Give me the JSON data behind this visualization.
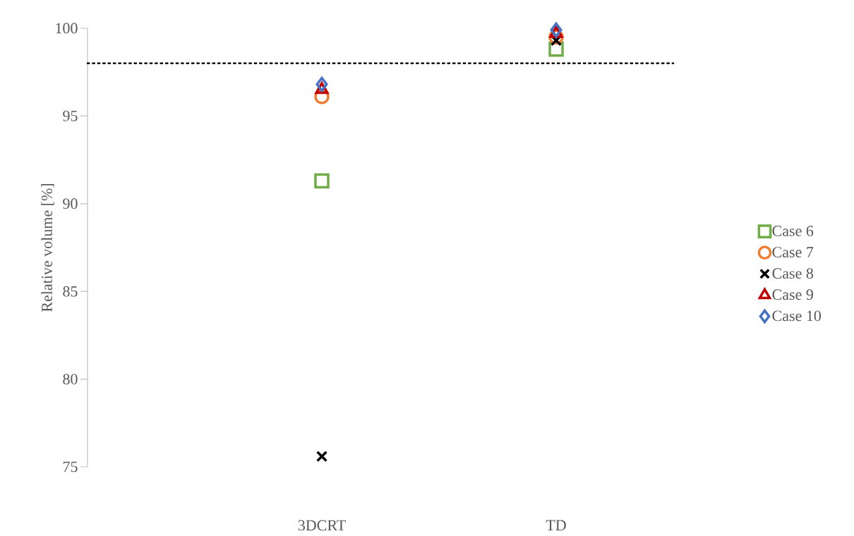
{
  "chart_data": {
    "type": "scatter",
    "ylabel": "Relative volume [%]",
    "categories": [
      "3DCRT",
      "TD"
    ],
    "ylim": [
      75,
      100
    ],
    "yticks": [
      75,
      80,
      85,
      90,
      95,
      100
    ],
    "legend": "right",
    "ref_lines": [
      {
        "axis": "y",
        "value": 98,
        "color": "#000000",
        "line_style": "dotted"
      }
    ],
    "series": [
      {
        "name": "Case 6",
        "color": "#70ad47",
        "marker": "square",
        "values": [
          91.3,
          98.8
        ]
      },
      {
        "name": "Case 7",
        "color": "#ed7d31",
        "marker": "circle",
        "values": [
          96.1,
          99.5
        ]
      },
      {
        "name": "Case 8",
        "color": "#000000",
        "marker": "cross",
        "values": [
          75.6,
          99.3
        ]
      },
      {
        "name": "Case 9",
        "color": "#c00000",
        "marker": "triangle",
        "values": [
          96.5,
          99.7
        ]
      },
      {
        "name": "Case 10",
        "color": "#4472c4",
        "marker": "diamond",
        "values": [
          96.8,
          99.9
        ]
      }
    ]
  }
}
